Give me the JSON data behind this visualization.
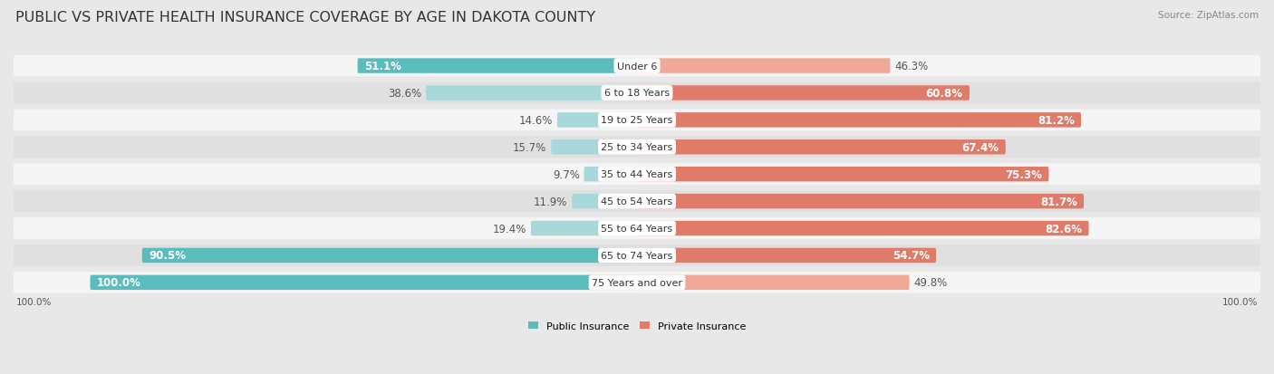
{
  "title": "PUBLIC VS PRIVATE HEALTH INSURANCE COVERAGE BY AGE IN DAKOTA COUNTY",
  "source": "Source: ZipAtlas.com",
  "categories": [
    "Under 6",
    "6 to 18 Years",
    "19 to 25 Years",
    "25 to 34 Years",
    "35 to 44 Years",
    "45 to 54 Years",
    "55 to 64 Years",
    "65 to 74 Years",
    "75 Years and over"
  ],
  "public_values": [
    51.1,
    38.6,
    14.6,
    15.7,
    9.7,
    11.9,
    19.4,
    90.5,
    100.0
  ],
  "private_values": [
    46.3,
    60.8,
    81.2,
    67.4,
    75.3,
    81.7,
    82.6,
    54.7,
    49.8
  ],
  "public_color": "#5bbcbe",
  "private_color": "#e07b6a",
  "public_color_light": "#a8d8d9",
  "private_color_light": "#f0a898",
  "public_label": "Public Insurance",
  "private_label": "Private Insurance",
  "background_color": "#e8e8e8",
  "row_bg_light": "#f5f5f5",
  "row_bg_dark": "#e0e0e0",
  "max_value": 100.0,
  "title_fontsize": 11.5,
  "label_fontsize": 8.0,
  "value_fontsize": 8.5,
  "source_fontsize": 7.5,
  "axis_label_fontsize": 7.5
}
